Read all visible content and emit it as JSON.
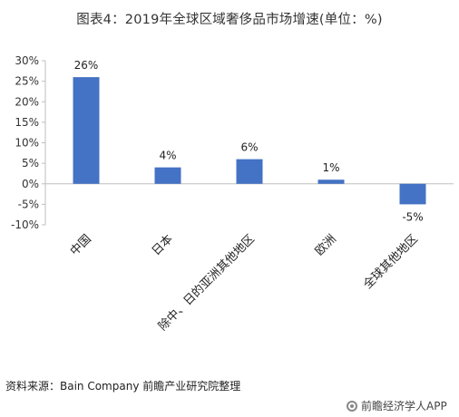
{
  "title": "图表4：2019年全球区域奢侈品市场增速(单位：%)",
  "source": "资料来源：Bain Company 前瞻产业研究院整理",
  "watermark": {
    "text": "前瞻经济学人APP",
    "icon": "logo-icon"
  },
  "chart_data": {
    "type": "bar",
    "categories": [
      "中国",
      "日本",
      "除中、日的亚洲其他地区",
      "欧洲",
      "全球其他地区"
    ],
    "values": [
      26,
      4,
      6,
      1,
      -5
    ],
    "value_labels": [
      "26%",
      "4%",
      "6%",
      "1%",
      "-5%"
    ],
    "title": "图表4：2019年全球区域奢侈品市场增速(单位：%)",
    "xlabel": "",
    "ylabel": "",
    "ylim": [
      -10,
      30
    ],
    "yticks": [
      30,
      25,
      20,
      15,
      10,
      5,
      0,
      -5,
      -10
    ],
    "ytick_labels": [
      "30%",
      "25%",
      "20%",
      "15%",
      "10%",
      "5%",
      "0%",
      "-5%",
      "-10%"
    ],
    "bar_color": "#4472C4",
    "grid": false,
    "legend": "none"
  }
}
